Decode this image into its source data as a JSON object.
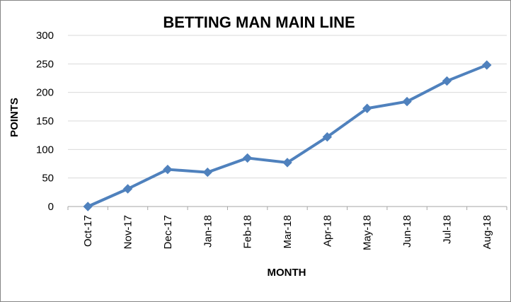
{
  "chart_data": {
    "type": "line",
    "title": "BETTING MAN MAIN LINE",
    "xlabel": "MONTH",
    "ylabel": "POINTS",
    "categories": [
      "Oct-17",
      "Nov-17",
      "Dec-17",
      "Jan-18",
      "Feb-18",
      "Mar-18",
      "Apr-18",
      "May-18",
      "Jun-18",
      "Jul-18",
      "Aug-18"
    ],
    "series": [
      {
        "values": [
          0,
          31,
          65,
          60,
          85,
          77,
          122,
          172,
          184,
          220,
          248
        ]
      }
    ],
    "ylim": [
      0,
      300
    ],
    "yticks": [
      0,
      50,
      100,
      150,
      200,
      250,
      300
    ],
    "grid": true,
    "legend": "none",
    "line_color": "#4f81bd"
  }
}
